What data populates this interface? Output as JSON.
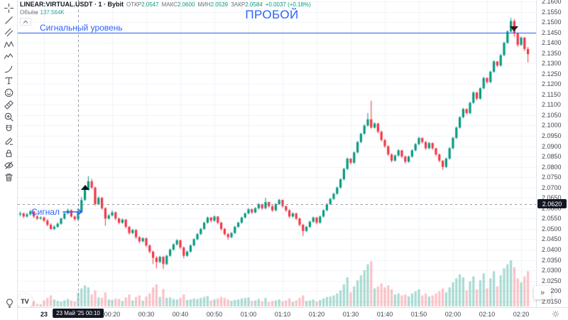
{
  "header": {
    "symbol_line": "LINEAR:VIRTUAL.USDT · 1 · Bybit",
    "ohlc": [
      {
        "label": "ОТКР",
        "value": "2.0547"
      },
      {
        "label": "МАКС",
        "value": "2.0600"
      },
      {
        "label": "МИН",
        "value": "2.0539"
      },
      {
        "label": "ЗАКР",
        "value": "2.0584"
      }
    ],
    "change": "+0.0037 (+0.18%)",
    "volume_label": "Объём",
    "volume_value": "137.564K"
  },
  "annotations": {
    "title": "ПРОБОЙ",
    "signal_level_label": "Сигнальный уровень",
    "signal_callout_label": "Сигнал"
  },
  "toolbar": {
    "tools": [
      "crosshair",
      "trend-line",
      "parallel-channel",
      "xabcd-pattern",
      "elliott-wave",
      "brush",
      "text",
      "emoji",
      "ruler",
      "zoom-in",
      "magnet",
      "drawing-mode",
      "lock-all",
      "hide-all",
      "remove-all"
    ],
    "bottom_tool": "ideas-bulb"
  },
  "watermark": {
    "text": "TV"
  },
  "controls": {
    "goto_realtime": "»",
    "collapse_chevron": "^"
  },
  "price_axis": {
    "labels": [
      "2.1600",
      "2.1550",
      "2.1500",
      "2.1450",
      "2.1400",
      "2.1350",
      "2.1300",
      "2.1250",
      "2.1200",
      "2.1150",
      "2.1100",
      "2.1050",
      "2.1000",
      "2.0950",
      "2.0900",
      "2.0850",
      "2.0800",
      "2.0750",
      "2.0700",
      "2.0650",
      "2.0600",
      "2.0550",
      "2.0500",
      "2.0450",
      "2.0400",
      "2.0350",
      "2.0300",
      "2.0250",
      "2.0200",
      "2.0150"
    ],
    "crosshair_price": "2.0620"
  },
  "time_axis": {
    "labels": [
      {
        "text": "23",
        "minute": 0,
        "day": true
      },
      {
        "text": "00:20",
        "minute": 20
      },
      {
        "text": "00:30",
        "minute": 30
      },
      {
        "text": "00:40",
        "minute": 40
      },
      {
        "text": "00:50",
        "minute": 50
      },
      {
        "text": "01:00",
        "minute": 60
      },
      {
        "text": "01:10",
        "minute": 70
      },
      {
        "text": "01:20",
        "minute": 80
      },
      {
        "text": "01:30",
        "minute": 90
      },
      {
        "text": "01:40",
        "minute": 100
      },
      {
        "text": "01:50",
        "minute": 110
      },
      {
        "text": "02:00",
        "minute": 120
      },
      {
        "text": "02:10",
        "minute": 130
      },
      {
        "text": "02:20",
        "minute": 140
      }
    ],
    "crosshair_time": "23 Май '25  00:10"
  },
  "colors": {
    "up": "#089981",
    "down": "#f23645",
    "volume_up": "rgba(8,153,129,0.35)",
    "volume_down": "rgba(242,54,69,0.30)",
    "accent": "#2962ff",
    "grid": "#f0f3fa",
    "marker_up": "#101216",
    "marker_down": "#33161a"
  },
  "chart_data": {
    "type": "candlestick",
    "symbol": "VIRTUAL.USDT",
    "interval": "1m",
    "start_minute_offset": -7,
    "price_range_visible": [
      2.013,
      2.164
    ],
    "price_grid_step": 0.005,
    "signal_level_price": 2.145,
    "crosshair": {
      "index": 17,
      "price": 2.062,
      "minute": 10
    },
    "markers": [
      {
        "shape": "triangle-up",
        "index": 19,
        "price": 2.069
      },
      {
        "shape": "triangle-down",
        "index": 145,
        "price": 2.1478
      }
    ],
    "candles": [
      [
        2.057,
        2.0585,
        2.056,
        2.0575
      ],
      [
        2.0575,
        2.058,
        2.0552,
        2.056
      ],
      [
        2.056,
        2.0578,
        2.0555,
        2.057
      ],
      [
        2.057,
        2.0592,
        2.0565,
        2.0585
      ],
      [
        2.0585,
        2.059,
        2.0552,
        2.056
      ],
      [
        2.056,
        2.0568,
        2.0542,
        2.055
      ],
      [
        2.055,
        2.0562,
        2.0545,
        2.0555
      ],
      [
        2.0555,
        2.056,
        2.0532,
        2.054
      ],
      [
        2.054,
        2.0548,
        2.0512,
        2.052
      ],
      [
        2.052,
        2.0528,
        2.0496,
        2.05
      ],
      [
        2.05,
        2.0518,
        2.0495,
        2.051
      ],
      [
        2.051,
        2.0532,
        2.0505,
        2.0525
      ],
      [
        2.0525,
        2.0555,
        2.052,
        2.055
      ],
      [
        2.055,
        2.058,
        2.0545,
        2.0575
      ],
      [
        2.0575,
        2.0598,
        2.057,
        2.059
      ],
      [
        2.059,
        2.0595,
        2.0555,
        2.056
      ],
      [
        2.056,
        2.0565,
        2.054,
        2.0547
      ],
      [
        2.0547,
        2.06,
        2.0539,
        2.0584
      ],
      [
        2.0584,
        2.0655,
        2.058,
        2.064
      ],
      [
        2.064,
        2.07,
        2.0635,
        2.069
      ],
      [
        2.069,
        2.0755,
        2.0685,
        2.073
      ],
      [
        2.073,
        2.0742,
        2.0692,
        2.07
      ],
      [
        2.07,
        2.0705,
        2.0612,
        2.062
      ],
      [
        2.062,
        2.0658,
        2.0615,
        2.065
      ],
      [
        2.065,
        2.0655,
        2.0592,
        2.06
      ],
      [
        2.06,
        2.0605,
        2.0515,
        2.055
      ],
      [
        2.055,
        2.0572,
        2.0545,
        2.0565
      ],
      [
        2.0565,
        2.059,
        2.056,
        2.058
      ],
      [
        2.058,
        2.0585,
        2.0542,
        2.055
      ],
      [
        2.055,
        2.0556,
        2.0522,
        2.053
      ],
      [
        2.053,
        2.055,
        2.0525,
        2.0545
      ],
      [
        2.0545,
        2.0548,
        2.0502,
        2.051
      ],
      [
        2.051,
        2.0515,
        2.0472,
        2.048
      ],
      [
        2.048,
        2.05,
        2.0475,
        2.0495
      ],
      [
        2.0495,
        2.0498,
        2.0452,
        2.046
      ],
      [
        2.046,
        2.0465,
        2.043,
        2.044
      ],
      [
        2.044,
        2.046,
        2.0435,
        2.0455
      ],
      [
        2.0455,
        2.0458,
        2.0412,
        2.042
      ],
      [
        2.042,
        2.0425,
        2.0382,
        2.039
      ],
      [
        2.039,
        2.0395,
        2.033,
        2.036
      ],
      [
        2.036,
        2.0368,
        2.031,
        2.034
      ],
      [
        2.034,
        2.037,
        2.0335,
        2.0365
      ],
      [
        2.0365,
        2.0368,
        2.0306,
        2.033
      ],
      [
        2.033,
        2.0375,
        2.0325,
        2.037
      ],
      [
        2.037,
        2.0405,
        2.0365,
        2.04
      ],
      [
        2.04,
        2.043,
        2.0395,
        2.0425
      ],
      [
        2.0425,
        2.045,
        2.042,
        2.0445
      ],
      [
        2.0445,
        2.0448,
        2.0402,
        2.041
      ],
      [
        2.041,
        2.0415,
        2.0358,
        2.037
      ],
      [
        2.037,
        2.0395,
        2.0365,
        2.039
      ],
      [
        2.039,
        2.0425,
        2.0385,
        2.042
      ],
      [
        2.042,
        2.0455,
        2.0415,
        2.045
      ],
      [
        2.045,
        2.048,
        2.0445,
        2.0475
      ],
      [
        2.0475,
        2.0505,
        2.047,
        2.05
      ],
      [
        2.05,
        2.0535,
        2.0495,
        2.053
      ],
      [
        2.053,
        2.056,
        2.0525,
        2.0555
      ],
      [
        2.0555,
        2.0558,
        2.0532,
        2.054
      ],
      [
        2.054,
        2.0565,
        2.0535,
        2.056
      ],
      [
        2.056,
        2.0562,
        2.0522,
        2.053
      ],
      [
        2.053,
        2.0535,
        2.0492,
        2.05
      ],
      [
        2.05,
        2.0505,
        2.0468,
        2.0475
      ],
      [
        2.0475,
        2.048,
        2.0448,
        2.046
      ],
      [
        2.046,
        2.0485,
        2.0455,
        2.048
      ],
      [
        2.048,
        2.0515,
        2.0475,
        2.051
      ],
      [
        2.051,
        2.0535,
        2.0505,
        2.053
      ],
      [
        2.053,
        2.056,
        2.0525,
        2.0555
      ],
      [
        2.0555,
        2.058,
        2.055,
        2.0575
      ],
      [
        2.0575,
        2.06,
        2.057,
        2.0595
      ],
      [
        2.0595,
        2.0598,
        2.0572,
        2.058
      ],
      [
        2.058,
        2.0605,
        2.0575,
        2.06
      ],
      [
        2.06,
        2.0625,
        2.0595,
        2.062
      ],
      [
        2.062,
        2.0622,
        2.0592,
        2.06
      ],
      [
        2.06,
        2.065,
        2.0595,
        2.063
      ],
      [
        2.063,
        2.0632,
        2.0602,
        2.061
      ],
      [
        2.061,
        2.0615,
        2.0582,
        2.059
      ],
      [
        2.059,
        2.0625,
        2.0585,
        2.062
      ],
      [
        2.062,
        2.0645,
        2.0615,
        2.064
      ],
      [
        2.064,
        2.0642,
        2.0602,
        2.061
      ],
      [
        2.061,
        2.0612,
        2.0582,
        2.059
      ],
      [
        2.059,
        2.0595,
        2.0552,
        2.056
      ],
      [
        2.056,
        2.058,
        2.0555,
        2.0575
      ],
      [
        2.0575,
        2.0578,
        2.0542,
        2.055
      ],
      [
        2.055,
        2.0555,
        2.0512,
        2.052
      ],
      [
        2.052,
        2.0525,
        2.0465,
        2.049
      ],
      [
        2.049,
        2.0515,
        2.0485,
        2.051
      ],
      [
        2.051,
        2.054,
        2.0505,
        2.0535
      ],
      [
        2.0535,
        2.056,
        2.053,
        2.0555
      ],
      [
        2.0555,
        2.0558,
        2.0522,
        2.053
      ],
      [
        2.053,
        2.0565,
        2.0525,
        2.056
      ],
      [
        2.056,
        2.0595,
        2.0555,
        2.059
      ],
      [
        2.059,
        2.0625,
        2.0585,
        2.062
      ],
      [
        2.062,
        2.065,
        2.0615,
        2.0645
      ],
      [
        2.0645,
        2.0675,
        2.064,
        2.067
      ],
      [
        2.067,
        2.0705,
        2.0665,
        2.07
      ],
      [
        2.07,
        2.0745,
        2.0695,
        2.074
      ],
      [
        2.074,
        2.0795,
        2.0735,
        2.079
      ],
      [
        2.079,
        2.0845,
        2.0785,
        2.084
      ],
      [
        2.084,
        2.0842,
        2.0812,
        2.082
      ],
      [
        2.082,
        2.0875,
        2.0815,
        2.087
      ],
      [
        2.087,
        2.0925,
        2.0865,
        2.092
      ],
      [
        2.092,
        2.0965,
        2.0915,
        2.096
      ],
      [
        2.096,
        2.1005,
        2.0955,
        2.1
      ],
      [
        2.1,
        2.106,
        2.0995,
        2.103
      ],
      [
        2.103,
        2.112,
        2.0985,
        2.099
      ],
      [
        2.099,
        2.1015,
        2.0985,
        2.101
      ],
      [
        2.101,
        2.1012,
        2.0962,
        2.097
      ],
      [
        2.097,
        2.0975,
        2.0922,
        2.093
      ],
      [
        2.093,
        2.0935,
        2.0892,
        2.09
      ],
      [
        2.09,
        2.0905,
        2.0852,
        2.086
      ],
      [
        2.086,
        2.0865,
        2.0822,
        2.083
      ],
      [
        2.083,
        2.086,
        2.0825,
        2.0855
      ],
      [
        2.0855,
        2.0885,
        2.085,
        2.088
      ],
      [
        2.088,
        2.0882,
        2.0842,
        2.085
      ],
      [
        2.085,
        2.0855,
        2.0815,
        2.0825
      ],
      [
        2.0825,
        2.0855,
        2.082,
        2.085
      ],
      [
        2.085,
        2.0885,
        2.0845,
        2.088
      ],
      [
        2.088,
        2.0915,
        2.0875,
        2.091
      ],
      [
        2.091,
        2.0945,
        2.0905,
        2.094
      ],
      [
        2.094,
        2.0942,
        2.0912,
        2.092
      ],
      [
        2.092,
        2.0925,
        2.0882,
        2.089
      ],
      [
        2.089,
        2.092,
        2.0885,
        2.0915
      ],
      [
        2.0915,
        2.0918,
        2.0882,
        2.089
      ],
      [
        2.089,
        2.0892,
        2.0852,
        2.086
      ],
      [
        2.086,
        2.0865,
        2.0822,
        2.083
      ],
      [
        2.083,
        2.0832,
        2.0785,
        2.08
      ],
      [
        2.08,
        2.0845,
        2.0795,
        2.084
      ],
      [
        2.084,
        2.0895,
        2.0835,
        2.089
      ],
      [
        2.089,
        2.0945,
        2.0885,
        2.094
      ],
      [
        2.094,
        2.0995,
        2.0935,
        2.099
      ],
      [
        2.099,
        2.1045,
        2.0985,
        2.104
      ],
      [
        2.104,
        2.1085,
        2.1035,
        2.108
      ],
      [
        2.108,
        2.1082,
        2.1052,
        2.106
      ],
      [
        2.106,
        2.1115,
        2.1055,
        2.111
      ],
      [
        2.111,
        2.1165,
        2.1105,
        2.116
      ],
      [
        2.116,
        2.1162,
        2.1122,
        2.113
      ],
      [
        2.113,
        2.1185,
        2.1125,
        2.118
      ],
      [
        2.118,
        2.1235,
        2.1175,
        2.123
      ],
      [
        2.123,
        2.1232,
        2.1202,
        2.121
      ],
      [
        2.121,
        2.1265,
        2.1205,
        2.126
      ],
      [
        2.126,
        2.1315,
        2.1255,
        2.131
      ],
      [
        2.131,
        2.1312,
        2.1282,
        2.129
      ],
      [
        2.129,
        2.1345,
        2.1285,
        2.134
      ],
      [
        2.134,
        2.1405,
        2.1335,
        2.14
      ],
      [
        2.14,
        2.146,
        2.1395,
        2.1455
      ],
      [
        2.1455,
        2.152,
        2.145,
        2.1505
      ],
      [
        2.1505,
        2.1515,
        2.143,
        2.1445
      ],
      [
        2.1445,
        2.145,
        2.138,
        2.139
      ],
      [
        2.139,
        2.143,
        2.1385,
        2.1425
      ],
      [
        2.1425,
        2.1428,
        2.136,
        2.137
      ],
      [
        2.137,
        2.138,
        2.1305,
        2.1345
      ]
    ],
    "volumes_k": [
      45,
      30,
      25,
      38,
      52,
      28,
      22,
      60,
      85,
      110,
      70,
      55,
      48,
      62,
      75,
      58,
      50,
      137,
      180,
      210,
      190,
      120,
      160,
      90,
      85,
      140,
      70,
      65,
      80,
      75,
      55,
      90,
      120,
      60,
      95,
      110,
      58,
      100,
      130,
      190,
      220,
      95,
      175,
      85,
      90,
      75,
      70,
      85,
      120,
      65,
      70,
      80,
      75,
      85,
      95,
      105,
      60,
      70,
      80,
      95,
      85,
      70,
      55,
      65,
      70,
      80,
      85,
      90,
      55,
      60,
      75,
      50,
      85,
      45,
      55,
      60,
      70,
      50,
      60,
      80,
      45,
      60,
      85,
      110,
      55,
      60,
      70,
      50,
      65,
      80,
      95,
      100,
      110,
      130,
      160,
      220,
      290,
      140,
      200,
      260,
      310,
      360,
      420,
      450,
      180,
      200,
      230,
      190,
      210,
      170,
      120,
      130,
      110,
      120,
      100,
      130,
      150,
      170,
      110,
      130,
      100,
      110,
      130,
      150,
      180,
      140,
      190,
      240,
      280,
      320,
      290,
      160,
      250,
      300,
      170,
      260,
      330,
      180,
      280,
      350,
      200,
      310,
      380,
      420,
      460,
      390,
      280,
      240,
      300,
      350
    ]
  }
}
